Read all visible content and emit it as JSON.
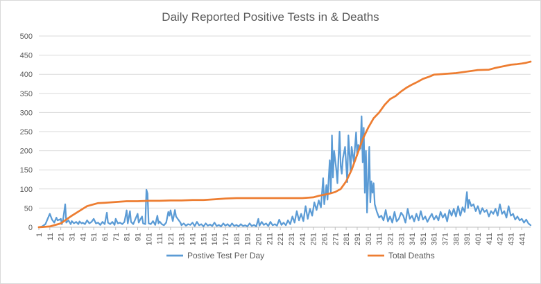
{
  "chart_data": {
    "type": "line",
    "title": "Daily Reported Positive Tests in & Deaths",
    "xlabel": "",
    "ylabel": "",
    "ylim": [
      0,
      500
    ],
    "yticks": [
      0,
      50,
      100,
      150,
      200,
      250,
      300,
      350,
      400,
      450,
      500
    ],
    "xlim": [
      1,
      449
    ],
    "xtick_start": 1,
    "xtick_step": 10,
    "xtick_end": 441,
    "grid": true,
    "legend_position": "bottom",
    "series": [
      {
        "name": "Postive Test Per Day",
        "color": "#5b9bd5",
        "points": [
          [
            1,
            0
          ],
          [
            4,
            2
          ],
          [
            7,
            8
          ],
          [
            9,
            22
          ],
          [
            11,
            35
          ],
          [
            13,
            20
          ],
          [
            15,
            12
          ],
          [
            17,
            25
          ],
          [
            18,
            18
          ],
          [
            20,
            20
          ],
          [
            21,
            22
          ],
          [
            22,
            8
          ],
          [
            23,
            18
          ],
          [
            25,
            60
          ],
          [
            26,
            12
          ],
          [
            28,
            18
          ],
          [
            30,
            8
          ],
          [
            31,
            16
          ],
          [
            33,
            10
          ],
          [
            35,
            14
          ],
          [
            37,
            8
          ],
          [
            38,
            15
          ],
          [
            40,
            10
          ],
          [
            41,
            12
          ],
          [
            43,
            8
          ],
          [
            45,
            18
          ],
          [
            47,
            10
          ],
          [
            49,
            14
          ],
          [
            51,
            22
          ],
          [
            53,
            10
          ],
          [
            55,
            12
          ],
          [
            57,
            6
          ],
          [
            59,
            14
          ],
          [
            61,
            8
          ],
          [
            63,
            38
          ],
          [
            64,
            12
          ],
          [
            66,
            8
          ],
          [
            68,
            14
          ],
          [
            70,
            6
          ],
          [
            71,
            22
          ],
          [
            73,
            10
          ],
          [
            75,
            12
          ],
          [
            77,
            8
          ],
          [
            79,
            14
          ],
          [
            81,
            44
          ],
          [
            82,
            10
          ],
          [
            84,
            42
          ],
          [
            85,
            14
          ],
          [
            87,
            8
          ],
          [
            89,
            22
          ],
          [
            91,
            35
          ],
          [
            92,
            12
          ],
          [
            93,
            18
          ],
          [
            95,
            28
          ],
          [
            96,
            10
          ],
          [
            98,
            8
          ],
          [
            99,
            98
          ],
          [
            100,
            88
          ],
          [
            101,
            10
          ],
          [
            103,
            8
          ],
          [
            105,
            16
          ],
          [
            107,
            6
          ],
          [
            109,
            30
          ],
          [
            110,
            10
          ],
          [
            111,
            15
          ],
          [
            113,
            8
          ],
          [
            115,
            5
          ],
          [
            117,
            12
          ],
          [
            119,
            40
          ],
          [
            120,
            30
          ],
          [
            121,
            44
          ],
          [
            123,
            16
          ],
          [
            125,
            45
          ],
          [
            126,
            28
          ],
          [
            128,
            20
          ],
          [
            130,
            12
          ],
          [
            131,
            5
          ],
          [
            133,
            10
          ],
          [
            135,
            4
          ],
          [
            137,
            8
          ],
          [
            139,
            6
          ],
          [
            141,
            12
          ],
          [
            143,
            3
          ],
          [
            145,
            14
          ],
          [
            147,
            5
          ],
          [
            149,
            8
          ],
          [
            151,
            2
          ],
          [
            153,
            10
          ],
          [
            155,
            4
          ],
          [
            157,
            7
          ],
          [
            159,
            3
          ],
          [
            161,
            12
          ],
          [
            163,
            3
          ],
          [
            165,
            6
          ],
          [
            167,
            2
          ],
          [
            169,
            10
          ],
          [
            171,
            4
          ],
          [
            173,
            8
          ],
          [
            175,
            2
          ],
          [
            177,
            10
          ],
          [
            179,
            3
          ],
          [
            181,
            6
          ],
          [
            183,
            2
          ],
          [
            185,
            8
          ],
          [
            187,
            3
          ],
          [
            189,
            5
          ],
          [
            191,
            2
          ],
          [
            193,
            10
          ],
          [
            195,
            3
          ],
          [
            197,
            6
          ],
          [
            199,
            2
          ],
          [
            201,
            22
          ],
          [
            202,
            4
          ],
          [
            204,
            14
          ],
          [
            206,
            6
          ],
          [
            208,
            10
          ],
          [
            210,
            3
          ],
          [
            212,
            14
          ],
          [
            214,
            5
          ],
          [
            216,
            8
          ],
          [
            218,
            4
          ],
          [
            220,
            20
          ],
          [
            222,
            6
          ],
          [
            224,
            12
          ],
          [
            226,
            5
          ],
          [
            228,
            18
          ],
          [
            230,
            8
          ],
          [
            232,
            28
          ],
          [
            234,
            12
          ],
          [
            236,
            42
          ],
          [
            238,
            18
          ],
          [
            240,
            35
          ],
          [
            242,
            16
          ],
          [
            244,
            55
          ],
          [
            246,
            22
          ],
          [
            248,
            48
          ],
          [
            250,
            30
          ],
          [
            252,
            65
          ],
          [
            254,
            45
          ],
          [
            256,
            70
          ],
          [
            258,
            52
          ],
          [
            260,
            128
          ],
          [
            261,
            60
          ],
          [
            263,
            110
          ],
          [
            264,
            72
          ],
          [
            266,
            175
          ],
          [
            267,
            90
          ],
          [
            268,
            240
          ],
          [
            269,
            130
          ],
          [
            270,
            200
          ],
          [
            272,
            150
          ],
          [
            273,
            115
          ],
          [
            275,
            250
          ],
          [
            276,
            160
          ],
          [
            277,
            140
          ],
          [
            278,
            180
          ],
          [
            280,
            210
          ],
          [
            282,
            118
          ],
          [
            283,
            240
          ],
          [
            285,
            145
          ],
          [
            286,
            210
          ],
          [
            288,
            170
          ],
          [
            290,
            248
          ],
          [
            291,
            190
          ],
          [
            292,
            215
          ],
          [
            294,
            205
          ],
          [
            295,
            290
          ],
          [
            296,
            170
          ],
          [
            297,
            260
          ],
          [
            298,
            90
          ],
          [
            299,
            200
          ],
          [
            300,
            38
          ],
          [
            301,
            120
          ],
          [
            302,
            210
          ],
          [
            303,
            65
          ],
          [
            304,
            120
          ],
          [
            305,
            90
          ],
          [
            306,
            115
          ],
          [
            307,
            60
          ],
          [
            309,
            40
          ],
          [
            311,
            25
          ],
          [
            313,
            30
          ],
          [
            315,
            18
          ],
          [
            317,
            45
          ],
          [
            319,
            15
          ],
          [
            321,
            28
          ],
          [
            323,
            12
          ],
          [
            325,
            40
          ],
          [
            327,
            15
          ],
          [
            329,
            22
          ],
          [
            331,
            38
          ],
          [
            333,
            30
          ],
          [
            335,
            12
          ],
          [
            337,
            48
          ],
          [
            339,
            22
          ],
          [
            341,
            30
          ],
          [
            343,
            15
          ],
          [
            345,
            35
          ],
          [
            347,
            18
          ],
          [
            349,
            42
          ],
          [
            351,
            20
          ],
          [
            353,
            28
          ],
          [
            355,
            14
          ],
          [
            357,
            25
          ],
          [
            359,
            35
          ],
          [
            361,
            20
          ],
          [
            363,
            30
          ],
          [
            365,
            18
          ],
          [
            367,
            40
          ],
          [
            369,
            25
          ],
          [
            371,
            35
          ],
          [
            373,
            15
          ],
          [
            375,
            45
          ],
          [
            377,
            30
          ],
          [
            379,
            48
          ],
          [
            381,
            28
          ],
          [
            383,
            55
          ],
          [
            385,
            30
          ],
          [
            387,
            52
          ],
          [
            389,
            40
          ],
          [
            391,
            92
          ],
          [
            392,
            50
          ],
          [
            393,
            72
          ],
          [
            395,
            55
          ],
          [
            397,
            60
          ],
          [
            399,
            42
          ],
          [
            401,
            55
          ],
          [
            403,
            35
          ],
          [
            405,
            50
          ],
          [
            407,
            40
          ],
          [
            409,
            45
          ],
          [
            411,
            28
          ],
          [
            413,
            42
          ],
          [
            415,
            35
          ],
          [
            417,
            48
          ],
          [
            419,
            30
          ],
          [
            421,
            60
          ],
          [
            423,
            35
          ],
          [
            425,
            42
          ],
          [
            427,
            25
          ],
          [
            429,
            55
          ],
          [
            431,
            30
          ],
          [
            433,
            35
          ],
          [
            435,
            20
          ],
          [
            437,
            28
          ],
          [
            439,
            18
          ],
          [
            441,
            22
          ],
          [
            443,
            12
          ],
          [
            445,
            20
          ],
          [
            447,
            10
          ],
          [
            449,
            5
          ]
        ]
      },
      {
        "name": "Total Deaths",
        "color": "#ed7d31",
        "points": [
          [
            1,
            0
          ],
          [
            11,
            2
          ],
          [
            21,
            10
          ],
          [
            31,
            30
          ],
          [
            41,
            48
          ],
          [
            45,
            55
          ],
          [
            51,
            60
          ],
          [
            55,
            63
          ],
          [
            61,
            64
          ],
          [
            71,
            66
          ],
          [
            81,
            68
          ],
          [
            91,
            68
          ],
          [
            101,
            69
          ],
          [
            111,
            69
          ],
          [
            121,
            70
          ],
          [
            131,
            70
          ],
          [
            141,
            71
          ],
          [
            151,
            71
          ],
          [
            161,
            73
          ],
          [
            171,
            75
          ],
          [
            181,
            76
          ],
          [
            191,
            76
          ],
          [
            201,
            76
          ],
          [
            211,
            76
          ],
          [
            221,
            76
          ],
          [
            231,
            76
          ],
          [
            241,
            76
          ],
          [
            251,
            78
          ],
          [
            256,
            82
          ],
          [
            261,
            85
          ],
          [
            266,
            88
          ],
          [
            271,
            92
          ],
          [
            276,
            100
          ],
          [
            281,
            120
          ],
          [
            286,
            150
          ],
          [
            291,
            190
          ],
          [
            296,
            230
          ],
          [
            301,
            260
          ],
          [
            306,
            285
          ],
          [
            311,
            300
          ],
          [
            316,
            320
          ],
          [
            321,
            335
          ],
          [
            326,
            343
          ],
          [
            331,
            355
          ],
          [
            336,
            365
          ],
          [
            341,
            373
          ],
          [
            346,
            380
          ],
          [
            351,
            388
          ],
          [
            356,
            393
          ],
          [
            361,
            399
          ],
          [
            366,
            400
          ],
          [
            371,
            401
          ],
          [
            381,
            403
          ],
          [
            391,
            407
          ],
          [
            401,
            411
          ],
          [
            411,
            412
          ],
          [
            416,
            416
          ],
          [
            421,
            419
          ],
          [
            426,
            422
          ],
          [
            431,
            425
          ],
          [
            436,
            426
          ],
          [
            441,
            428
          ],
          [
            445,
            430
          ],
          [
            449,
            433
          ]
        ]
      }
    ]
  }
}
